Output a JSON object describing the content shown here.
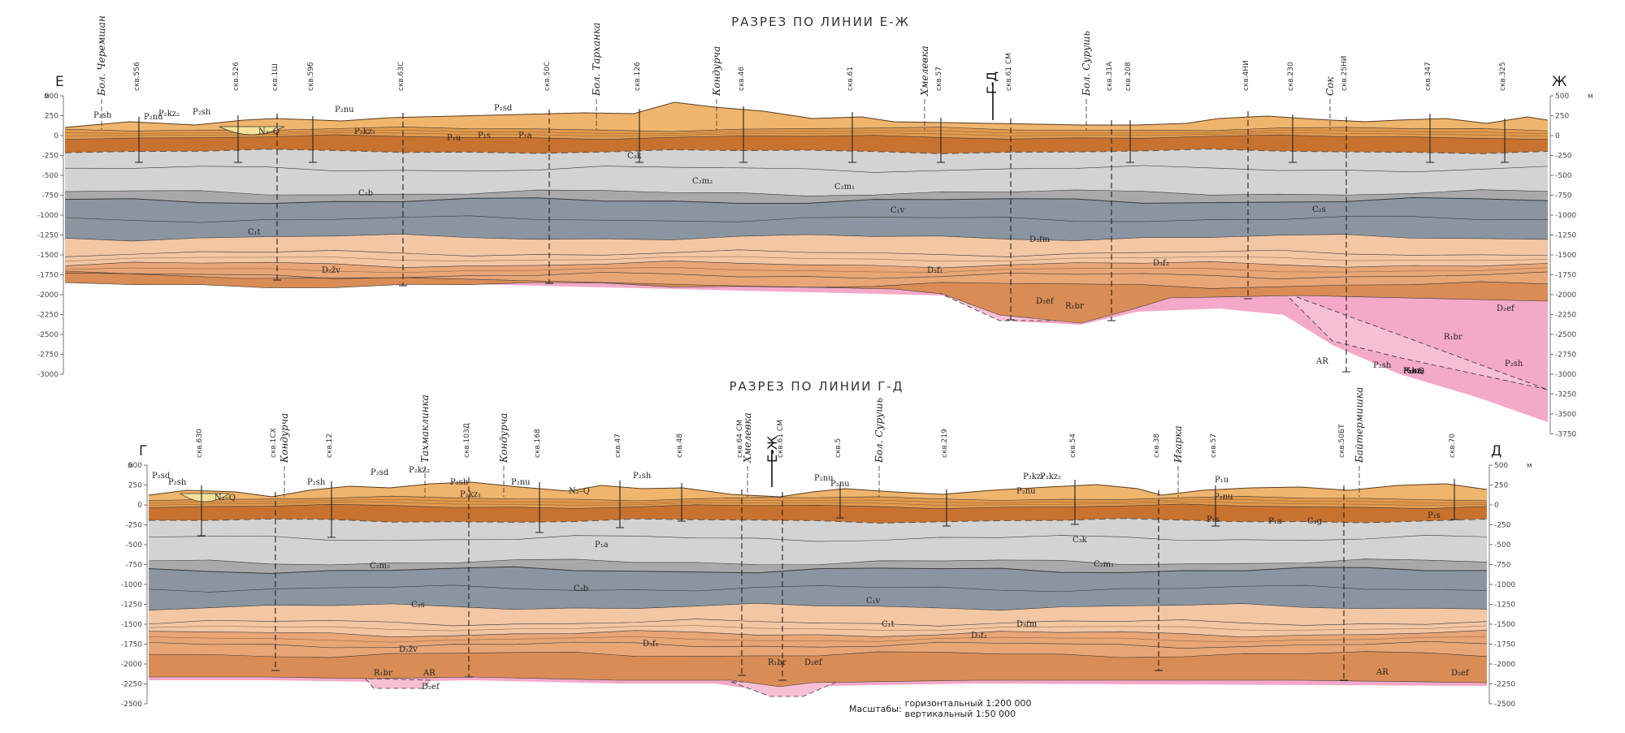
{
  "sections": [
    {
      "id": "EZh",
      "title": "РАЗРЕЗ ПО ЛИНИИ Е-Ж",
      "left_label": "Е",
      "right_label": "Ж",
      "unit_left": "м",
      "unit_right": "м",
      "depth_ticks": [
        "500",
        "250",
        "0",
        "-250",
        "-500",
        "-750",
        "-1000",
        "-1250",
        "-1500",
        "-1750",
        "-2000",
        "-2250",
        "-2500",
        "-2750",
        "-3000"
      ],
      "depth_ticks_right": [
        "500",
        "250",
        "0",
        "-250",
        "-500",
        "-750",
        "-1000",
        "-1250",
        "-1500",
        "-1750",
        "-2000",
        "-2250",
        "-2500",
        "-2750",
        "-3000",
        "-3250",
        "-3500",
        "-3750"
      ],
      "rivers": [
        "Бол. Черемшан",
        "Бол. Тарханка",
        "Кондурча",
        "Хмелевка",
        "Бол. Сурушь",
        "Сок"
      ],
      "crossing": "Г-Д",
      "wells": [
        "скв.556",
        "скв.526",
        "скв.1Ш",
        "скв.59б",
        "скв.63С",
        "скв.50С",
        "скв.126",
        "скв.46",
        "скв.61",
        "скв.57",
        "скв.61 СМ",
        "скв.31А",
        "скв.208",
        "скв.4НИ",
        "скв.230",
        "скв.25НИ",
        "скв.347",
        "скв.325"
      ],
      "strata": [
        "P₂sh",
        "P₂nu",
        "P₂kz₂",
        "P₂sh",
        "N₂–Q",
        "P₂kz₁",
        "P₂sd",
        "P₂nu",
        "P₁u",
        "P₁s",
        "P₁a",
        "C₃k",
        "C₂m₂",
        "C₂m₁",
        "C₂b",
        "C₁v",
        "C₂s",
        "C₁t",
        "D₃fm",
        "D₃f₂",
        "D₃f₁",
        "D₂žv",
        "D₂ef",
        "R₁br",
        "D₂ef",
        "R₁br",
        "AR",
        "P₂sh",
        "P₂sh",
        "P₂nu",
        "P₂kz₂",
        "P₂kz₁",
        "N₂–Q",
        "P₁s",
        "P₁a",
        "P₁u",
        "P₂nu",
        "P₂kz₂",
        "P₂nu"
      ]
    },
    {
      "id": "GD",
      "title": "РАЗРЕЗ ПО ЛИНИИ Г-Д",
      "left_label": "Г",
      "right_label": "Д",
      "unit_left": "м",
      "unit_right": "м",
      "depth_ticks": [
        "500",
        "250",
        "0",
        "-250",
        "-500",
        "-750",
        "-1000",
        "-1250",
        "-1500",
        "-1750",
        "-2000",
        "-2250",
        "-2500"
      ],
      "rivers": [
        "Кондурча",
        "Тахмаклинка",
        "Кондурча",
        "Хмелевка",
        "Бол. Сурушь",
        "Игарка",
        "Байтермишка"
      ],
      "crossing": "Е-Ж",
      "wells": [
        "скв.630",
        "скв.1СХ",
        "скв.12",
        "скв.103Д",
        "скв.168",
        "скв.47",
        "скв.48",
        "скв.64 СМ",
        "скв.61 СМ",
        "скв.5",
        "скв.219",
        "скв.54",
        "скв.38",
        "скв.57",
        "скв.50БТ",
        "скв.70"
      ],
      "strata": [
        "P₂sd",
        "P₂sh",
        "N₂–Q",
        "P₂sh",
        "P₂sd",
        "P₂kz₂",
        "P₂sh",
        "P₂kz₁",
        "P₂nu",
        "N₂–Q",
        "P₂sh",
        "P₂nu",
        "P₂nu",
        "P₂kz₁",
        "P₂nu",
        "P₂kz₂",
        "P₂nu",
        "P₁u",
        "P₁s",
        "P₁a",
        "C₃g",
        "P₁s",
        "P₁a",
        "C₃k",
        "C₂m₂",
        "C₂m₁",
        "C₂b",
        "C₂s",
        "C₁v",
        "C₁t",
        "D₃fm",
        "D₃f₂",
        "D₃f₁",
        "D₂žv",
        "D₂ef",
        "R₁br",
        "AR",
        "R₁br",
        "D₂ef",
        "AR",
        "D₂ef"
      ]
    }
  ],
  "scale": {
    "label": "Масштабы:",
    "horizontal": "горизонтальный 1:200 000",
    "vertical": "вертикальный     1:50 000"
  },
  "colors": {
    "perm_dark": "#c8722f",
    "perm_mid": "#e39a4d",
    "perm_light": "#efb56d",
    "neogene": "#f6e29a",
    "carb_light": "#d3d3d3",
    "carb_mid": "#a9a9ab",
    "carb_dark": "#8a95a1",
    "dev_light": "#f3c6a4",
    "dev_mid": "#e8a576",
    "dev_dark": "#d98c55",
    "riphean": "#f4a9c9",
    "archean": "#f7bfd6"
  }
}
